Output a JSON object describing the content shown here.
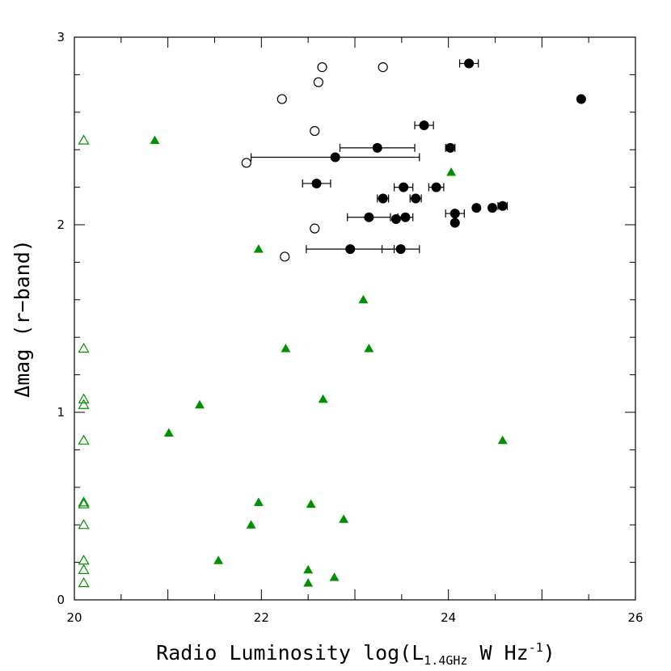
{
  "chart_data": {
    "type": "scatter",
    "title": "",
    "xlabel_main": "Radio Luminosity log(L",
    "xlabel_sub": "1.4GHz",
    "xlabel_unit": " W Hz",
    "xlabel_sup": "-1",
    "xlabel_close": ")",
    "ylabel": "Δmag (r−band)",
    "xlim": [
      20,
      26
    ],
    "ylim": [
      0,
      3
    ],
    "x_ticks": [
      "20",
      "22",
      "24",
      "26"
    ],
    "y_ticks": [
      "0",
      "1",
      "2",
      "3"
    ],
    "series": [
      {
        "name": "filled black circles",
        "marker": "filled-circle",
        "color": "#000000",
        "points": [
          {
            "x": 24.22,
            "y": 2.86,
            "xerr": [
              24.12,
              24.32
            ]
          },
          {
            "x": 25.42,
            "y": 2.67
          },
          {
            "x": 23.74,
            "y": 2.53,
            "xerr": [
              23.64,
              23.84
            ]
          },
          {
            "x": 23.24,
            "y": 2.41,
            "xerr": [
              22.84,
              23.64
            ]
          },
          {
            "x": 24.02,
            "y": 2.41,
            "xerr": [
              23.97,
              24.07
            ]
          },
          {
            "x": 22.79,
            "y": 2.36,
            "xerr": [
              21.89,
              23.69
            ]
          },
          {
            "x": 22.59,
            "y": 2.22,
            "xerr": [
              22.44,
              22.74
            ]
          },
          {
            "x": 23.52,
            "y": 2.2,
            "xerr": [
              23.42,
              23.62
            ]
          },
          {
            "x": 23.87,
            "y": 2.2,
            "xerr": [
              23.79,
              23.95
            ]
          },
          {
            "x": 23.3,
            "y": 2.14,
            "xerr": [
              23.24,
              23.36
            ]
          },
          {
            "x": 23.65,
            "y": 2.14,
            "xerr": [
              23.59,
              23.71
            ]
          },
          {
            "x": 24.3,
            "y": 2.09
          },
          {
            "x": 24.47,
            "y": 2.09
          },
          {
            "x": 24.58,
            "y": 2.1,
            "xerr": [
              24.53,
              24.63
            ]
          },
          {
            "x": 24.07,
            "y": 2.06,
            "xerr": [
              23.97,
              24.17
            ]
          },
          {
            "x": 23.15,
            "y": 2.04,
            "xerr": [
              22.92,
              23.38
            ]
          },
          {
            "x": 23.54,
            "y": 2.04,
            "xerr": [
              23.46,
              23.62
            ]
          },
          {
            "x": 23.44,
            "y": 2.03
          },
          {
            "x": 24.07,
            "y": 2.01
          },
          {
            "x": 22.95,
            "y": 1.87,
            "xerr": [
              22.48,
              23.42
            ]
          },
          {
            "x": 23.49,
            "y": 1.87,
            "xerr": [
              23.29,
              23.69
            ]
          }
        ]
      },
      {
        "name": "open circles",
        "marker": "open-circle",
        "color": "#000000",
        "points": [
          {
            "x": 22.65,
            "y": 2.84
          },
          {
            "x": 23.3,
            "y": 2.84
          },
          {
            "x": 22.61,
            "y": 2.76
          },
          {
            "x": 22.22,
            "y": 2.67
          },
          {
            "x": 22.57,
            "y": 2.5
          },
          {
            "x": 21.84,
            "y": 2.33
          },
          {
            "x": 22.57,
            "y": 1.98
          },
          {
            "x": 22.25,
            "y": 1.83
          }
        ]
      },
      {
        "name": "filled green triangles",
        "marker": "filled-triangle",
        "color": "#009000",
        "points": [
          {
            "x": 20.86,
            "y": 2.45
          },
          {
            "x": 24.03,
            "y": 2.28
          },
          {
            "x": 21.97,
            "y": 1.87
          },
          {
            "x": 23.09,
            "y": 1.6
          },
          {
            "x": 22.26,
            "y": 1.34
          },
          {
            "x": 23.15,
            "y": 1.34
          },
          {
            "x": 22.66,
            "y": 1.07
          },
          {
            "x": 21.34,
            "y": 1.04
          },
          {
            "x": 21.01,
            "y": 0.89
          },
          {
            "x": 24.58,
            "y": 0.85
          },
          {
            "x": 21.97,
            "y": 0.52
          },
          {
            "x": 22.53,
            "y": 0.51
          },
          {
            "x": 22.88,
            "y": 0.43
          },
          {
            "x": 21.89,
            "y": 0.4
          },
          {
            "x": 21.54,
            "y": 0.21
          },
          {
            "x": 22.5,
            "y": 0.16
          },
          {
            "x": 22.78,
            "y": 0.12
          },
          {
            "x": 22.5,
            "y": 0.09
          }
        ]
      },
      {
        "name": "open green triangles",
        "marker": "open-triangle",
        "color": "#009000",
        "points": [
          {
            "x": 20.1,
            "y": 2.45
          },
          {
            "x": 20.1,
            "y": 1.34
          },
          {
            "x": 20.1,
            "y": 1.07
          },
          {
            "x": 20.1,
            "y": 1.04
          },
          {
            "x": 20.1,
            "y": 0.85
          },
          {
            "x": 20.1,
            "y": 0.52
          },
          {
            "x": 20.1,
            "y": 0.51
          },
          {
            "x": 20.1,
            "y": 0.4
          },
          {
            "x": 20.1,
            "y": 0.21
          },
          {
            "x": 20.1,
            "y": 0.16
          },
          {
            "x": 20.1,
            "y": 0.09
          }
        ]
      }
    ]
  }
}
